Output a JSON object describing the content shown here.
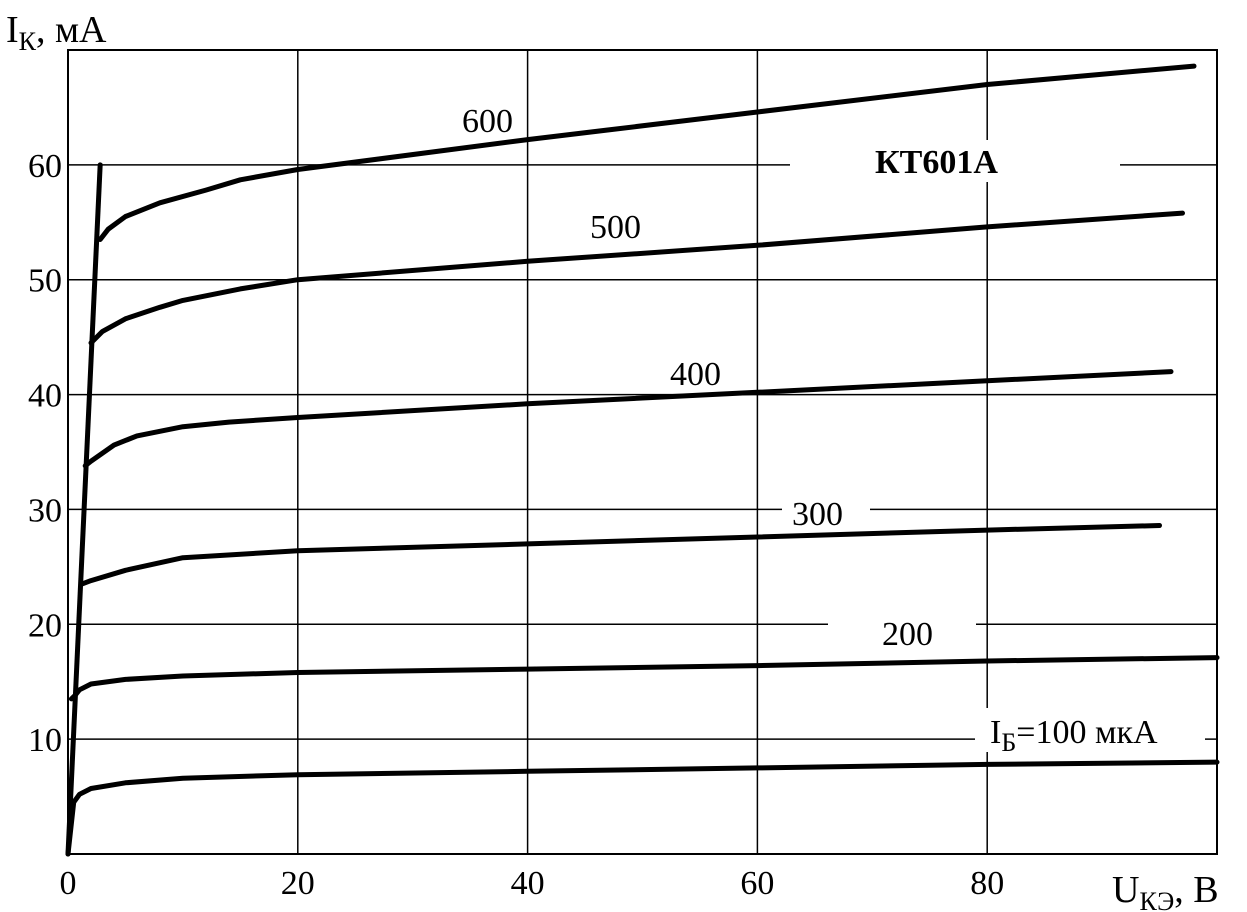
{
  "chart_data": {
    "type": "line",
    "title": "КТ601А",
    "ylabel": {
      "main": "I",
      "sub": "К",
      "unit": ", мА"
    },
    "xlabel": {
      "main": "U",
      "sub": "КЭ",
      "unit": ", В"
    },
    "xlim": [
      0,
      100
    ],
    "ylim": [
      0,
      70
    ],
    "x_ticks": [
      "0",
      "20",
      "40",
      "60",
      "80"
    ],
    "x_tick_values": [
      0,
      20,
      40,
      60,
      80
    ],
    "y_ticks": [
      "10",
      "20",
      "30",
      "40",
      "50",
      "60"
    ],
    "y_tick_values": [
      10,
      20,
      30,
      40,
      50,
      60
    ],
    "grid": true,
    "series": [
      {
        "name": "IБ=100 мкА",
        "label_prefix": "I",
        "label_sub": "Б",
        "label_suffix": "=100 мкА",
        "x": [
          0,
          0.5,
          1,
          2,
          5,
          10,
          20,
          40,
          60,
          80,
          100
        ],
        "y": [
          0,
          4.5,
          5.2,
          5.7,
          6.2,
          6.6,
          6.9,
          7.2,
          7.5,
          7.8,
          8.0
        ]
      },
      {
        "name": "200",
        "label": "200",
        "x": [
          0.3,
          0.6,
          1,
          2,
          5,
          10,
          20,
          40,
          60,
          80,
          100
        ],
        "y": [
          13.5,
          13.8,
          14.3,
          14.8,
          15.2,
          15.5,
          15.8,
          16.1,
          16.4,
          16.8,
          17.1
        ]
      },
      {
        "name": "300",
        "label": "300",
        "x": [
          1.2,
          2,
          5,
          10,
          20,
          40,
          60,
          80,
          95
        ],
        "y": [
          23.5,
          23.8,
          24.7,
          25.8,
          26.4,
          27.0,
          27.6,
          28.2,
          28.6
        ]
      },
      {
        "name": "400",
        "label": "400",
        "x": [
          1.5,
          2,
          4,
          6,
          10,
          14,
          20,
          40,
          60,
          80,
          96
        ],
        "y": [
          33.8,
          34.2,
          35.6,
          36.4,
          37.2,
          37.6,
          38.0,
          39.2,
          40.2,
          41.2,
          42.0
        ]
      },
      {
        "name": "500",
        "label": "500",
        "x": [
          2,
          3,
          5,
          8,
          10,
          15,
          20,
          40,
          60,
          80,
          97
        ],
        "y": [
          44.5,
          45.5,
          46.6,
          47.6,
          48.2,
          49.2,
          50.0,
          51.6,
          53.0,
          54.6,
          55.8
        ]
      },
      {
        "name": "600",
        "label": "600",
        "x": [
          2.8,
          3.5,
          5,
          8,
          12,
          15,
          20,
          40,
          60,
          80,
          98
        ],
        "y": [
          53.5,
          54.4,
          55.5,
          56.7,
          57.8,
          58.7,
          59.6,
          62.2,
          64.6,
          67.0,
          68.6
        ]
      }
    ],
    "saturation_line": {
      "x": [
        0,
        2.8
      ],
      "y": [
        0,
        60
      ]
    }
  }
}
